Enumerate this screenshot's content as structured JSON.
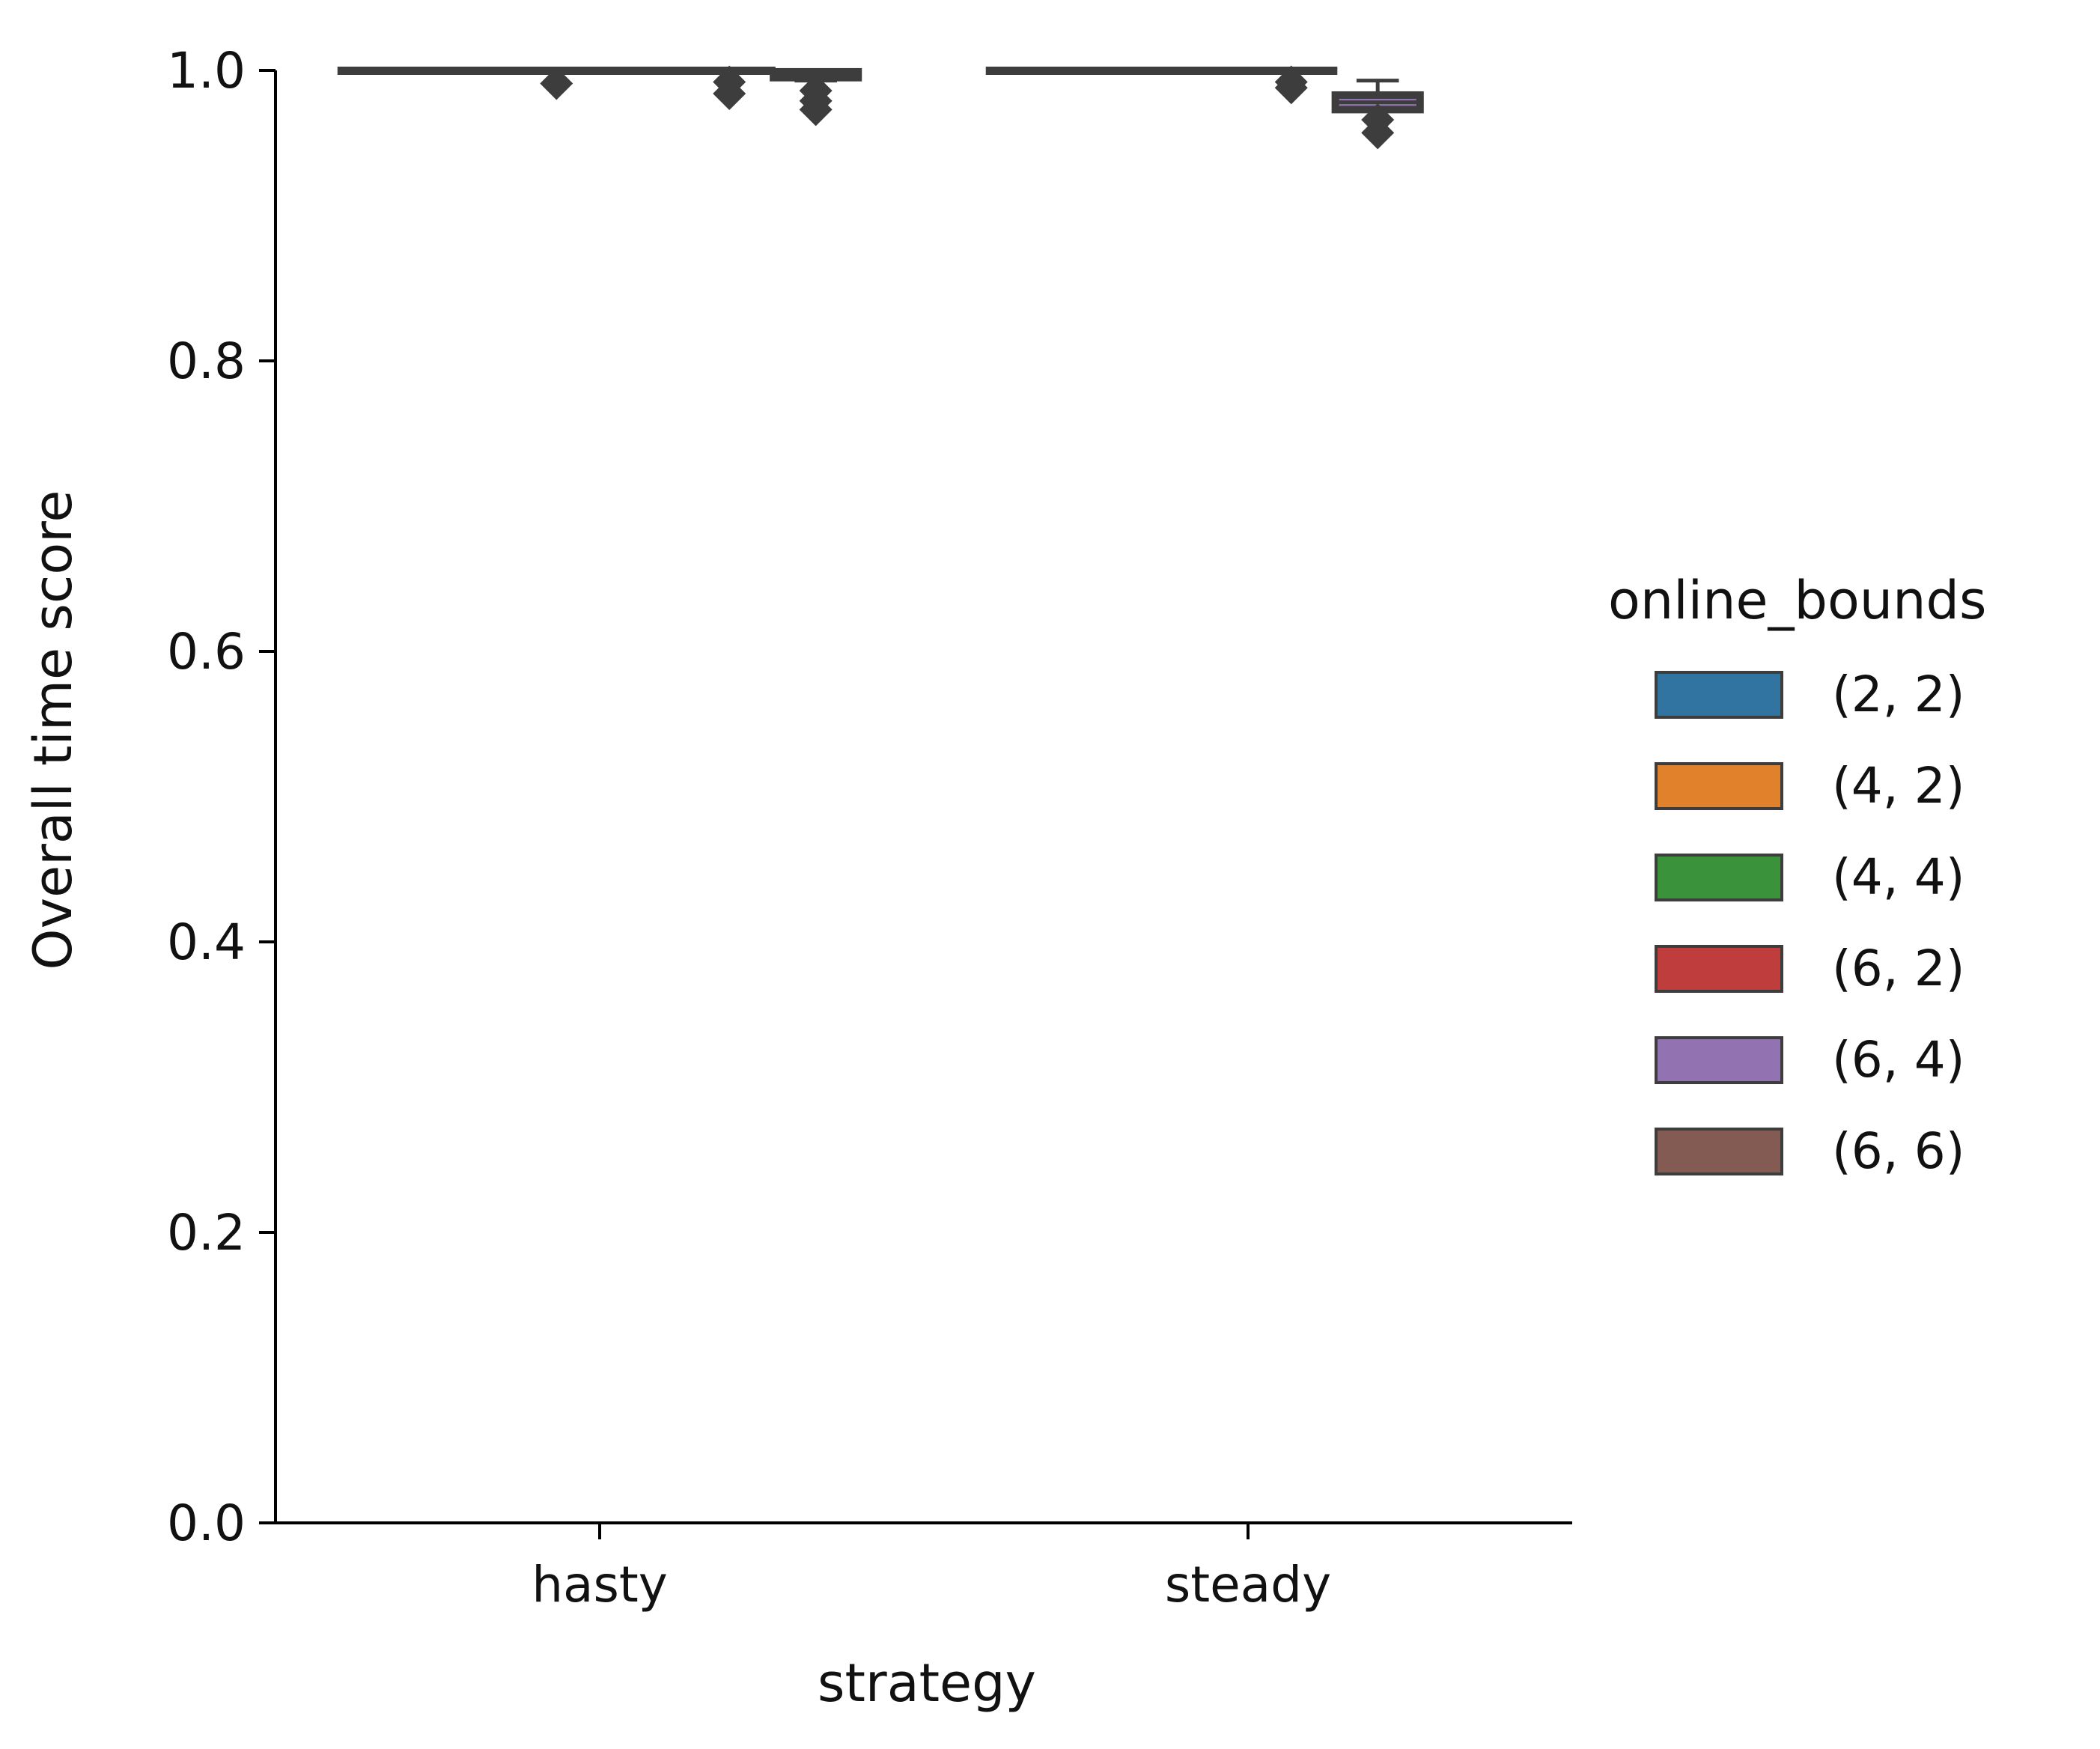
{
  "chart_data": {
    "type": "boxplot",
    "title": "",
    "xlabel": "strategy",
    "ylabel": "Overall time score",
    "ylim": [
      0,
      1.0
    ],
    "yticks": [
      "0.0",
      "0.2",
      "0.4",
      "0.6",
      "0.8",
      "1.0"
    ],
    "categories": [
      "hasty",
      "steady"
    ],
    "grid": false,
    "legend": {
      "title": "online_bounds",
      "placement": "right"
    },
    "series": [
      {
        "name": "(2, 2)",
        "color": "#3274a1",
        "boxes": [
          {
            "category": "hasty",
            "q1": 1.0,
            "median": 1.0,
            "q3": 1.0,
            "whisker_low": 1.0,
            "whisker_high": 1.0,
            "outliers": []
          },
          {
            "category": "steady",
            "q1": 1.0,
            "median": 1.0,
            "q3": 1.0,
            "whisker_low": 1.0,
            "whisker_high": 1.0,
            "outliers": []
          }
        ]
      },
      {
        "name": "(4, 2)",
        "color": "#e1812c",
        "boxes": [
          {
            "category": "hasty",
            "q1": 1.0,
            "median": 1.0,
            "q3": 1.0,
            "whisker_low": 1.0,
            "whisker_high": 1.0,
            "outliers": []
          },
          {
            "category": "steady",
            "q1": 1.0,
            "median": 1.0,
            "q3": 1.0,
            "whisker_low": 1.0,
            "whisker_high": 1.0,
            "outliers": []
          }
        ]
      },
      {
        "name": "(4, 4)",
        "color": "#3a923a",
        "boxes": [
          {
            "category": "hasty",
            "q1": 1.0,
            "median": 1.0,
            "q3": 1.0,
            "whisker_low": 1.0,
            "whisker_high": 1.0,
            "outliers": [
              0.991
            ]
          },
          {
            "category": "steady",
            "q1": 1.0,
            "median": 1.0,
            "q3": 1.0,
            "whisker_low": 1.0,
            "whisker_high": 1.0,
            "outliers": []
          }
        ]
      },
      {
        "name": "(6, 2)",
        "color": "#c03d3e",
        "boxes": [
          {
            "category": "hasty",
            "q1": 1.0,
            "median": 1.0,
            "q3": 1.0,
            "whisker_low": 1.0,
            "whisker_high": 1.0,
            "outliers": []
          },
          {
            "category": "steady",
            "q1": 1.0,
            "median": 1.0,
            "q3": 1.0,
            "whisker_low": 1.0,
            "whisker_high": 1.0,
            "outliers": [
              0.992,
              0.988
            ]
          }
        ]
      },
      {
        "name": "(6, 4)",
        "color": "#9372b2",
        "boxes": [
          {
            "category": "hasty",
            "q1": 1.0,
            "median": 1.0,
            "q3": 1.0,
            "whisker_low": 1.0,
            "whisker_high": 1.0,
            "outliers": [
              0.992,
              0.984
            ]
          },
          {
            "category": "steady",
            "q1": 0.973,
            "median": 0.978,
            "q3": 0.983,
            "whisker_low": 0.973,
            "whisker_high": 0.993,
            "outliers": [
              0.966,
              0.957
            ]
          }
        ]
      },
      {
        "name": "(6, 6)",
        "color": "#845b53",
        "boxes": [
          {
            "category": "hasty",
            "q1": 0.995,
            "median": 0.997,
            "q3": 0.999,
            "whisker_low": 0.993,
            "whisker_high": 1.0,
            "outliers": [
              0.986,
              0.979,
              0.973
            ]
          },
          {
            "category": "steady",
            "q1": null,
            "median": null,
            "q3": null,
            "whisker_low": null,
            "whisker_high": null,
            "outliers": []
          }
        ]
      }
    ]
  }
}
